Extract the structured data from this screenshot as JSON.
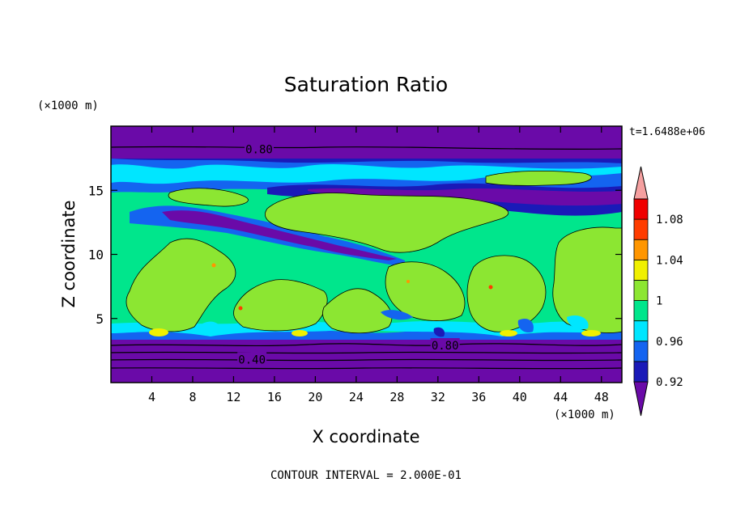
{
  "chart_data": {
    "type": "heatmap",
    "title": "Saturation Ratio",
    "xlabel": "X coordinate",
    "ylabel": "Z coordinate",
    "x_unit": "(×1000 m)",
    "y_unit": "(×1000 m)",
    "time_label": "t=1.6488e+06",
    "footer": "CONTOUR INTERVAL = 2.000E-01",
    "xlim": [
      0,
      50
    ],
    "ylim": [
      0,
      20
    ],
    "x_ticks": [
      4,
      8,
      12,
      16,
      20,
      24,
      28,
      32,
      36,
      40,
      44,
      48
    ],
    "y_ticks": [
      5,
      10,
      15
    ],
    "colorbar": {
      "labels": [
        "1.08",
        "1.04",
        "1",
        "0.96",
        "0.92"
      ],
      "colors": [
        "#6a0aa8",
        "#1a1ab8",
        "#1464f0",
        "#00e6ff",
        "#00e68c",
        "#8ce632",
        "#f0f000",
        "#ff9600",
        "#ff3c00",
        "#f00000",
        "#f5a0a0"
      ]
    },
    "contour_labels": [
      {
        "text": "0.80",
        "x": 14.5,
        "y": 18.2
      },
      {
        "text": "0.80",
        "x": 32.7,
        "y": 2.9
      },
      {
        "text": "0.40",
        "x": 13.8,
        "y": 1.8
      }
    ],
    "field_colors": {
      "dry": "#6a0aa8",
      "very_low": "#1a1ab8",
      "low": "#1464f0",
      "mid_low": "#00e6ff",
      "near_one": "#00e68c",
      "one": "#8ce632",
      "above_one": "#f0f000",
      "high": "#ff9600",
      "very_high": "#ff3c00"
    }
  }
}
